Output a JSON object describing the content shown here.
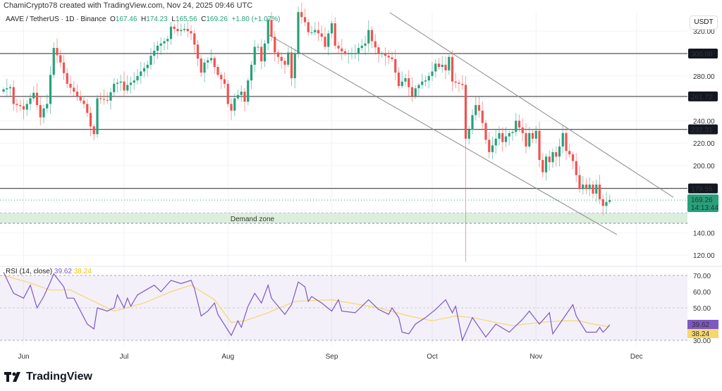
{
  "header": {
    "credit": "ChamiCrypto78 created with TradingView.com, Nov 24, 2025 09:46 UTC",
    "symbol": "AAVE / TetherUS · 1D · Binance",
    "open_label": "O",
    "open": "167.46",
    "high_label": "H",
    "high": "174.23",
    "low_label": "L",
    "low": "165.56",
    "close_label": "C",
    "close": "169.26",
    "change": "+1.80 (+1.07%)"
  },
  "currency": "USDT",
  "price_axis": [
    "320.00",
    "280.00",
    "240.00",
    "220.00",
    "200.00",
    "140.00",
    "120.00"
  ],
  "levels": [
    "300.00",
    "261.72",
    "232.31",
    "179.55"
  ],
  "last_price": {
    "value": "169.26",
    "countdown": "14:13:44"
  },
  "demand_zone": {
    "label": "Demand zone"
  },
  "rsi": {
    "label": "RSI (14, close)",
    "value": "39.62",
    "ma_value": "38.24",
    "axis": [
      "70.00",
      "60.00",
      "50.00",
      "30.00"
    ]
  },
  "time_axis": [
    "Jun",
    "Jul",
    "Aug",
    "Sep",
    "Oct",
    "Nov",
    "Dec"
  ],
  "brand": "TradingView",
  "colors": {
    "up": "#26a17b",
    "down": "#ef5350",
    "rsi": "#7e57c2",
    "rsi_ma": "#f5d76e",
    "zone": "#dcefdc"
  },
  "chart_data": {
    "type": "candlestick",
    "title": "AAVE / TetherUS · 1D · Binance",
    "x_unit": "day index from May 26, 2025",
    "ylim": [
      110,
      330
    ],
    "closes": [
      [
        0,
        268
      ],
      [
        2,
        270
      ],
      [
        3,
        255
      ],
      [
        5,
        253
      ],
      [
        6,
        250
      ],
      [
        8,
        260
      ],
      [
        9,
        265
      ],
      [
        11,
        243
      ],
      [
        12,
        251
      ],
      [
        13,
        255
      ],
      [
        14,
        281
      ],
      [
        15,
        305
      ],
      [
        17,
        292
      ],
      [
        19,
        273
      ],
      [
        21,
        266
      ],
      [
        23,
        258
      ],
      [
        24,
        255
      ],
      [
        25,
        247
      ],
      [
        26,
        235
      ],
      [
        27,
        228
      ],
      [
        28,
        260
      ],
      [
        31,
        258
      ],
      [
        33,
        273
      ],
      [
        35,
        275
      ],
      [
        36,
        267
      ],
      [
        37,
        272
      ],
      [
        39,
        276
      ],
      [
        41,
        284
      ],
      [
        43,
        290
      ],
      [
        44,
        298
      ],
      [
        46,
        307
      ],
      [
        49,
        313
      ],
      [
        50,
        324
      ],
      [
        52,
        320
      ],
      [
        54,
        322
      ],
      [
        56,
        318
      ],
      [
        57,
        308
      ],
      [
        59,
        283
      ],
      [
        60,
        292
      ],
      [
        62,
        296
      ],
      [
        63,
        288
      ],
      [
        64,
        281
      ],
      [
        66,
        273
      ],
      [
        67,
        255
      ],
      [
        68,
        249
      ],
      [
        69,
        260
      ],
      [
        71,
        266
      ],
      [
        72,
        257
      ],
      [
        73,
        276
      ],
      [
        74,
        290
      ],
      [
        75,
        306
      ],
      [
        76,
        306
      ],
      [
        77,
        293
      ],
      [
        78,
        309
      ],
      [
        79,
        330
      ],
      [
        80,
        315
      ],
      [
        81,
        301
      ],
      [
        82,
        297
      ],
      [
        84,
        290
      ],
      [
        85,
        301
      ],
      [
        86,
        278
      ],
      [
        87,
        300
      ],
      [
        88,
        337
      ],
      [
        90,
        328
      ],
      [
        91,
        319
      ],
      [
        92,
        319
      ],
      [
        93,
        321
      ],
      [
        94,
        318
      ],
      [
        95,
        315
      ],
      [
        96,
        306
      ],
      [
        97,
        318
      ],
      [
        98,
        327
      ],
      [
        99,
        307
      ],
      [
        101,
        302
      ],
      [
        102,
        300
      ],
      [
        103,
        300
      ],
      [
        105,
        300
      ],
      [
        106,
        305
      ],
      [
        108,
        309
      ],
      [
        109,
        321
      ],
      [
        110,
        311
      ],
      [
        112,
        300
      ],
      [
        113,
        300
      ],
      [
        114,
        298
      ],
      [
        116,
        295
      ],
      [
        118,
        271
      ],
      [
        119,
        275
      ],
      [
        120,
        278
      ],
      [
        122,
        262
      ],
      [
        123,
        269
      ],
      [
        125,
        275
      ],
      [
        126,
        276
      ],
      [
        128,
        284
      ],
      [
        129,
        291
      ],
      [
        130,
        288
      ],
      [
        131,
        290
      ],
      [
        132,
        285
      ],
      [
        133,
        297
      ],
      [
        134,
        275
      ],
      [
        136,
        273
      ],
      [
        137,
        272
      ],
      [
        138,
        224
      ],
      [
        139,
        232
      ],
      [
        140,
        245
      ],
      [
        141,
        254
      ],
      [
        142,
        249
      ],
      [
        143,
        238
      ],
      [
        144,
        223
      ],
      [
        145,
        212
      ],
      [
        146,
        218
      ],
      [
        147,
        224
      ],
      [
        148,
        229
      ],
      [
        149,
        221
      ],
      [
        150,
        226
      ],
      [
        151,
        229
      ],
      [
        152,
        230
      ],
      [
        153,
        240
      ],
      [
        154,
        234
      ],
      [
        155,
        229
      ],
      [
        156,
        217
      ],
      [
        157,
        229
      ],
      [
        158,
        224
      ],
      [
        159,
        231
      ],
      [
        160,
        205
      ],
      [
        161,
        194
      ],
      [
        162,
        208
      ],
      [
        163,
        203
      ],
      [
        164,
        212
      ],
      [
        165,
        208
      ],
      [
        166,
        217
      ],
      [
        167,
        229
      ],
      [
        168,
        213
      ],
      [
        169,
        210
      ],
      [
        170,
        204
      ],
      [
        172,
        179
      ],
      [
        173,
        183
      ],
      [
        174,
        179
      ],
      [
        175,
        183
      ],
      [
        176,
        175
      ],
      [
        177,
        183
      ],
      [
        178,
        170
      ],
      [
        179,
        164
      ],
      [
        180,
        167.46
      ],
      [
        181,
        169.26
      ]
    ],
    "last_candle": {
      "open": 167.46,
      "high": 174.23,
      "low": 165.56,
      "close": 169.26
    },
    "special_wicks": [
      {
        "day": 138,
        "low": 114
      }
    ],
    "horizontal_levels": [
      300.0,
      261.72,
      232.31,
      179.55
    ],
    "demand_zone_range": [
      148.4,
      158
    ],
    "rsi_series": [
      [
        0,
        72
      ],
      [
        3,
        59
      ],
      [
        6,
        56
      ],
      [
        8,
        64
      ],
      [
        10,
        50
      ],
      [
        12,
        57
      ],
      [
        14,
        66
      ],
      [
        15,
        71
      ],
      [
        18,
        63
      ],
      [
        19,
        56
      ],
      [
        21,
        56
      ],
      [
        25,
        40
      ],
      [
        27,
        37
      ],
      [
        28,
        50
      ],
      [
        31,
        48
      ],
      [
        33,
        50
      ],
      [
        34,
        58
      ],
      [
        36,
        50
      ],
      [
        37,
        56
      ],
      [
        38,
        51
      ],
      [
        40,
        58
      ],
      [
        45,
        64
      ],
      [
        47,
        60
      ],
      [
        50,
        67
      ],
      [
        53,
        65
      ],
      [
        56,
        67
      ],
      [
        57,
        62
      ],
      [
        59,
        45
      ],
      [
        61,
        48
      ],
      [
        63,
        53
      ],
      [
        64,
        46
      ],
      [
        68,
        33
      ],
      [
        70,
        42
      ],
      [
        71,
        38
      ],
      [
        73,
        51
      ],
      [
        75,
        59
      ],
      [
        77,
        53
      ],
      [
        79,
        64
      ],
      [
        80,
        56
      ],
      [
        82,
        51
      ],
      [
        84,
        46
      ],
      [
        86,
        52
      ],
      [
        88,
        66
      ],
      [
        90,
        63
      ],
      [
        91,
        54
      ],
      [
        92,
        57
      ],
      [
        95,
        53
      ],
      [
        98,
        48
      ],
      [
        100,
        55
      ],
      [
        101,
        48
      ],
      [
        105,
        47
      ],
      [
        109,
        55
      ],
      [
        112,
        49
      ],
      [
        115,
        46
      ],
      [
        116,
        50
      ],
      [
        118,
        44
      ],
      [
        119,
        35
      ],
      [
        121,
        34
      ],
      [
        123,
        40
      ],
      [
        126,
        44
      ],
      [
        129,
        49
      ],
      [
        132,
        55
      ],
      [
        134,
        47
      ],
      [
        135,
        51
      ],
      [
        137,
        30
      ],
      [
        140,
        44
      ],
      [
        144,
        32
      ],
      [
        147,
        40
      ],
      [
        151,
        35
      ],
      [
        155,
        43
      ],
      [
        157,
        48
      ],
      [
        160,
        40
      ],
      [
        163,
        47
      ],
      [
        164,
        34
      ],
      [
        167,
        43
      ],
      [
        170,
        52
      ],
      [
        171,
        45
      ],
      [
        174,
        35
      ],
      [
        177,
        35
      ],
      [
        178,
        38
      ],
      [
        179,
        35
      ],
      [
        180,
        37
      ],
      [
        181,
        39.62
      ]
    ],
    "rsi_ma_series": [
      [
        0,
        70
      ],
      [
        7,
        66
      ],
      [
        14,
        61
      ],
      [
        20,
        61
      ],
      [
        29,
        52
      ],
      [
        33,
        48
      ],
      [
        42,
        53
      ],
      [
        50,
        60
      ],
      [
        56,
        64
      ],
      [
        63,
        55
      ],
      [
        68,
        41
      ],
      [
        72,
        42
      ],
      [
        79,
        47
      ],
      [
        87,
        54
      ],
      [
        98,
        55
      ],
      [
        112,
        50
      ],
      [
        121,
        45
      ],
      [
        128,
        42
      ],
      [
        135,
        45
      ],
      [
        140,
        44
      ],
      [
        147,
        41
      ],
      [
        152,
        39
      ],
      [
        160,
        41
      ],
      [
        167,
        42
      ],
      [
        172,
        42
      ],
      [
        176,
        40
      ],
      [
        181,
        38.24
      ]
    ],
    "rsi_ylim": [
      30,
      70
    ],
    "time_ticks": [
      [
        "Jun",
        6
      ],
      [
        "Jul",
        36
      ],
      [
        "Aug",
        67
      ],
      [
        "Sep",
        98
      ],
      [
        "Oct",
        128
      ],
      [
        "Nov",
        159
      ],
      [
        "Dec",
        189
      ]
    ]
  }
}
